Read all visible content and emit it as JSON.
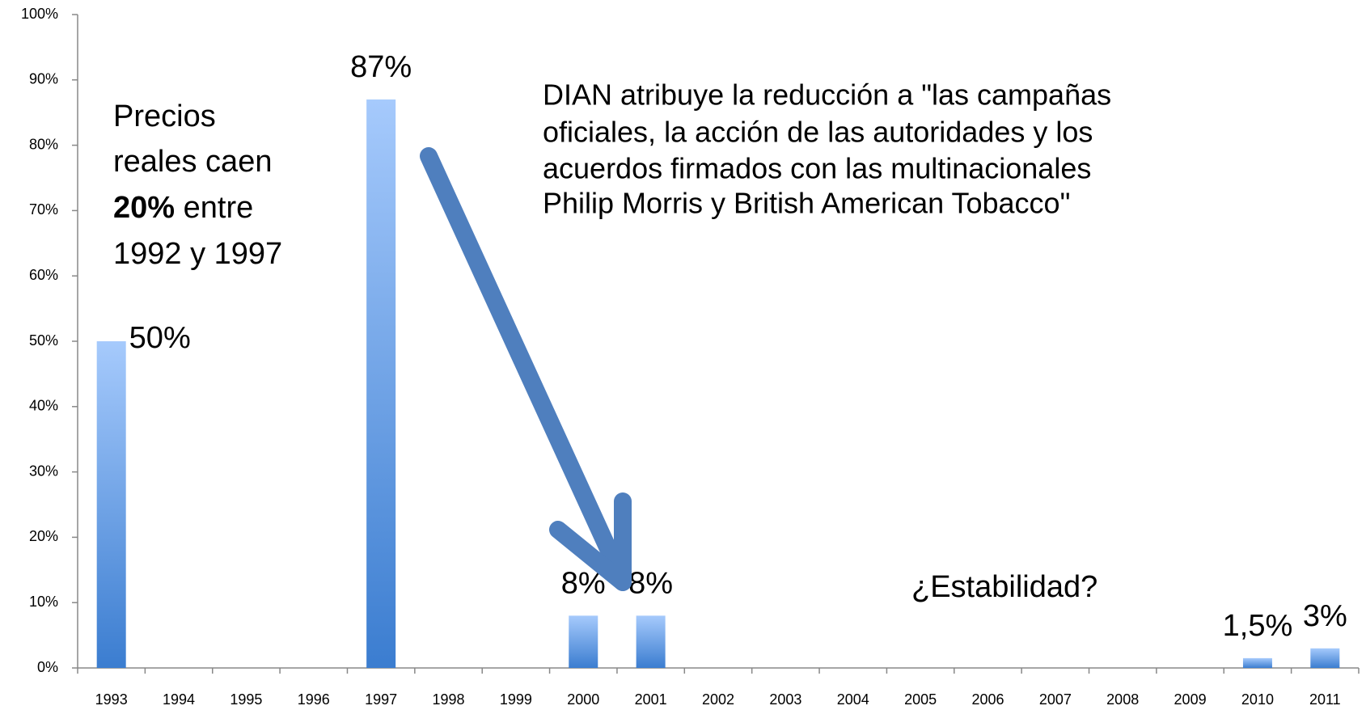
{
  "chart_data": {
    "type": "bar",
    "categories": [
      "1993",
      "1994",
      "1995",
      "1996",
      "1997",
      "1998",
      "1999",
      "2000",
      "2001",
      "2002",
      "2003",
      "2004",
      "2005",
      "2006",
      "2007",
      "2008",
      "2009",
      "2010",
      "2011"
    ],
    "values": [
      50,
      null,
      null,
      null,
      87,
      null,
      null,
      8,
      8,
      null,
      null,
      null,
      null,
      null,
      null,
      null,
      null,
      1.5,
      3
    ],
    "value_labels": [
      "50%",
      null,
      null,
      null,
      "87%",
      null,
      null,
      "8%",
      "8%",
      null,
      null,
      null,
      null,
      null,
      null,
      null,
      null,
      "1,5%",
      "3%"
    ],
    "color_top": "#a6cafc",
    "color_bottom": "#3b7dd0",
    "ylim": [
      0,
      100
    ],
    "yticks": [
      {
        "value": 0,
        "label": "0%"
      },
      {
        "value": 10,
        "label": "10%"
      },
      {
        "value": 20,
        "label": "20%"
      },
      {
        "value": 30,
        "label": "30%"
      },
      {
        "value": 40,
        "label": "40%"
      },
      {
        "value": 50,
        "label": "50%"
      },
      {
        "value": 60,
        "label": "60%"
      },
      {
        "value": 70,
        "label": "70%"
      },
      {
        "value": 80,
        "label": "80%"
      },
      {
        "value": 90,
        "label": "90%"
      },
      {
        "value": 100,
        "label": "100%"
      }
    ],
    "grid": false,
    "left_note": {
      "line1": "Precios",
      "line2": "reales caen",
      "bold": "20%",
      "after_bold": " entre",
      "line4": "1992 y 1997"
    },
    "right_note": [
      "DIAN atribuye la reducción a \"las campañas",
      "oficiales, la acción de las autoridades y los",
      "acuerdos firmados con las multinacionales",
      "Philip Morris y British American Tobacco\""
    ],
    "stability_note": "¿Estabilidad?"
  }
}
